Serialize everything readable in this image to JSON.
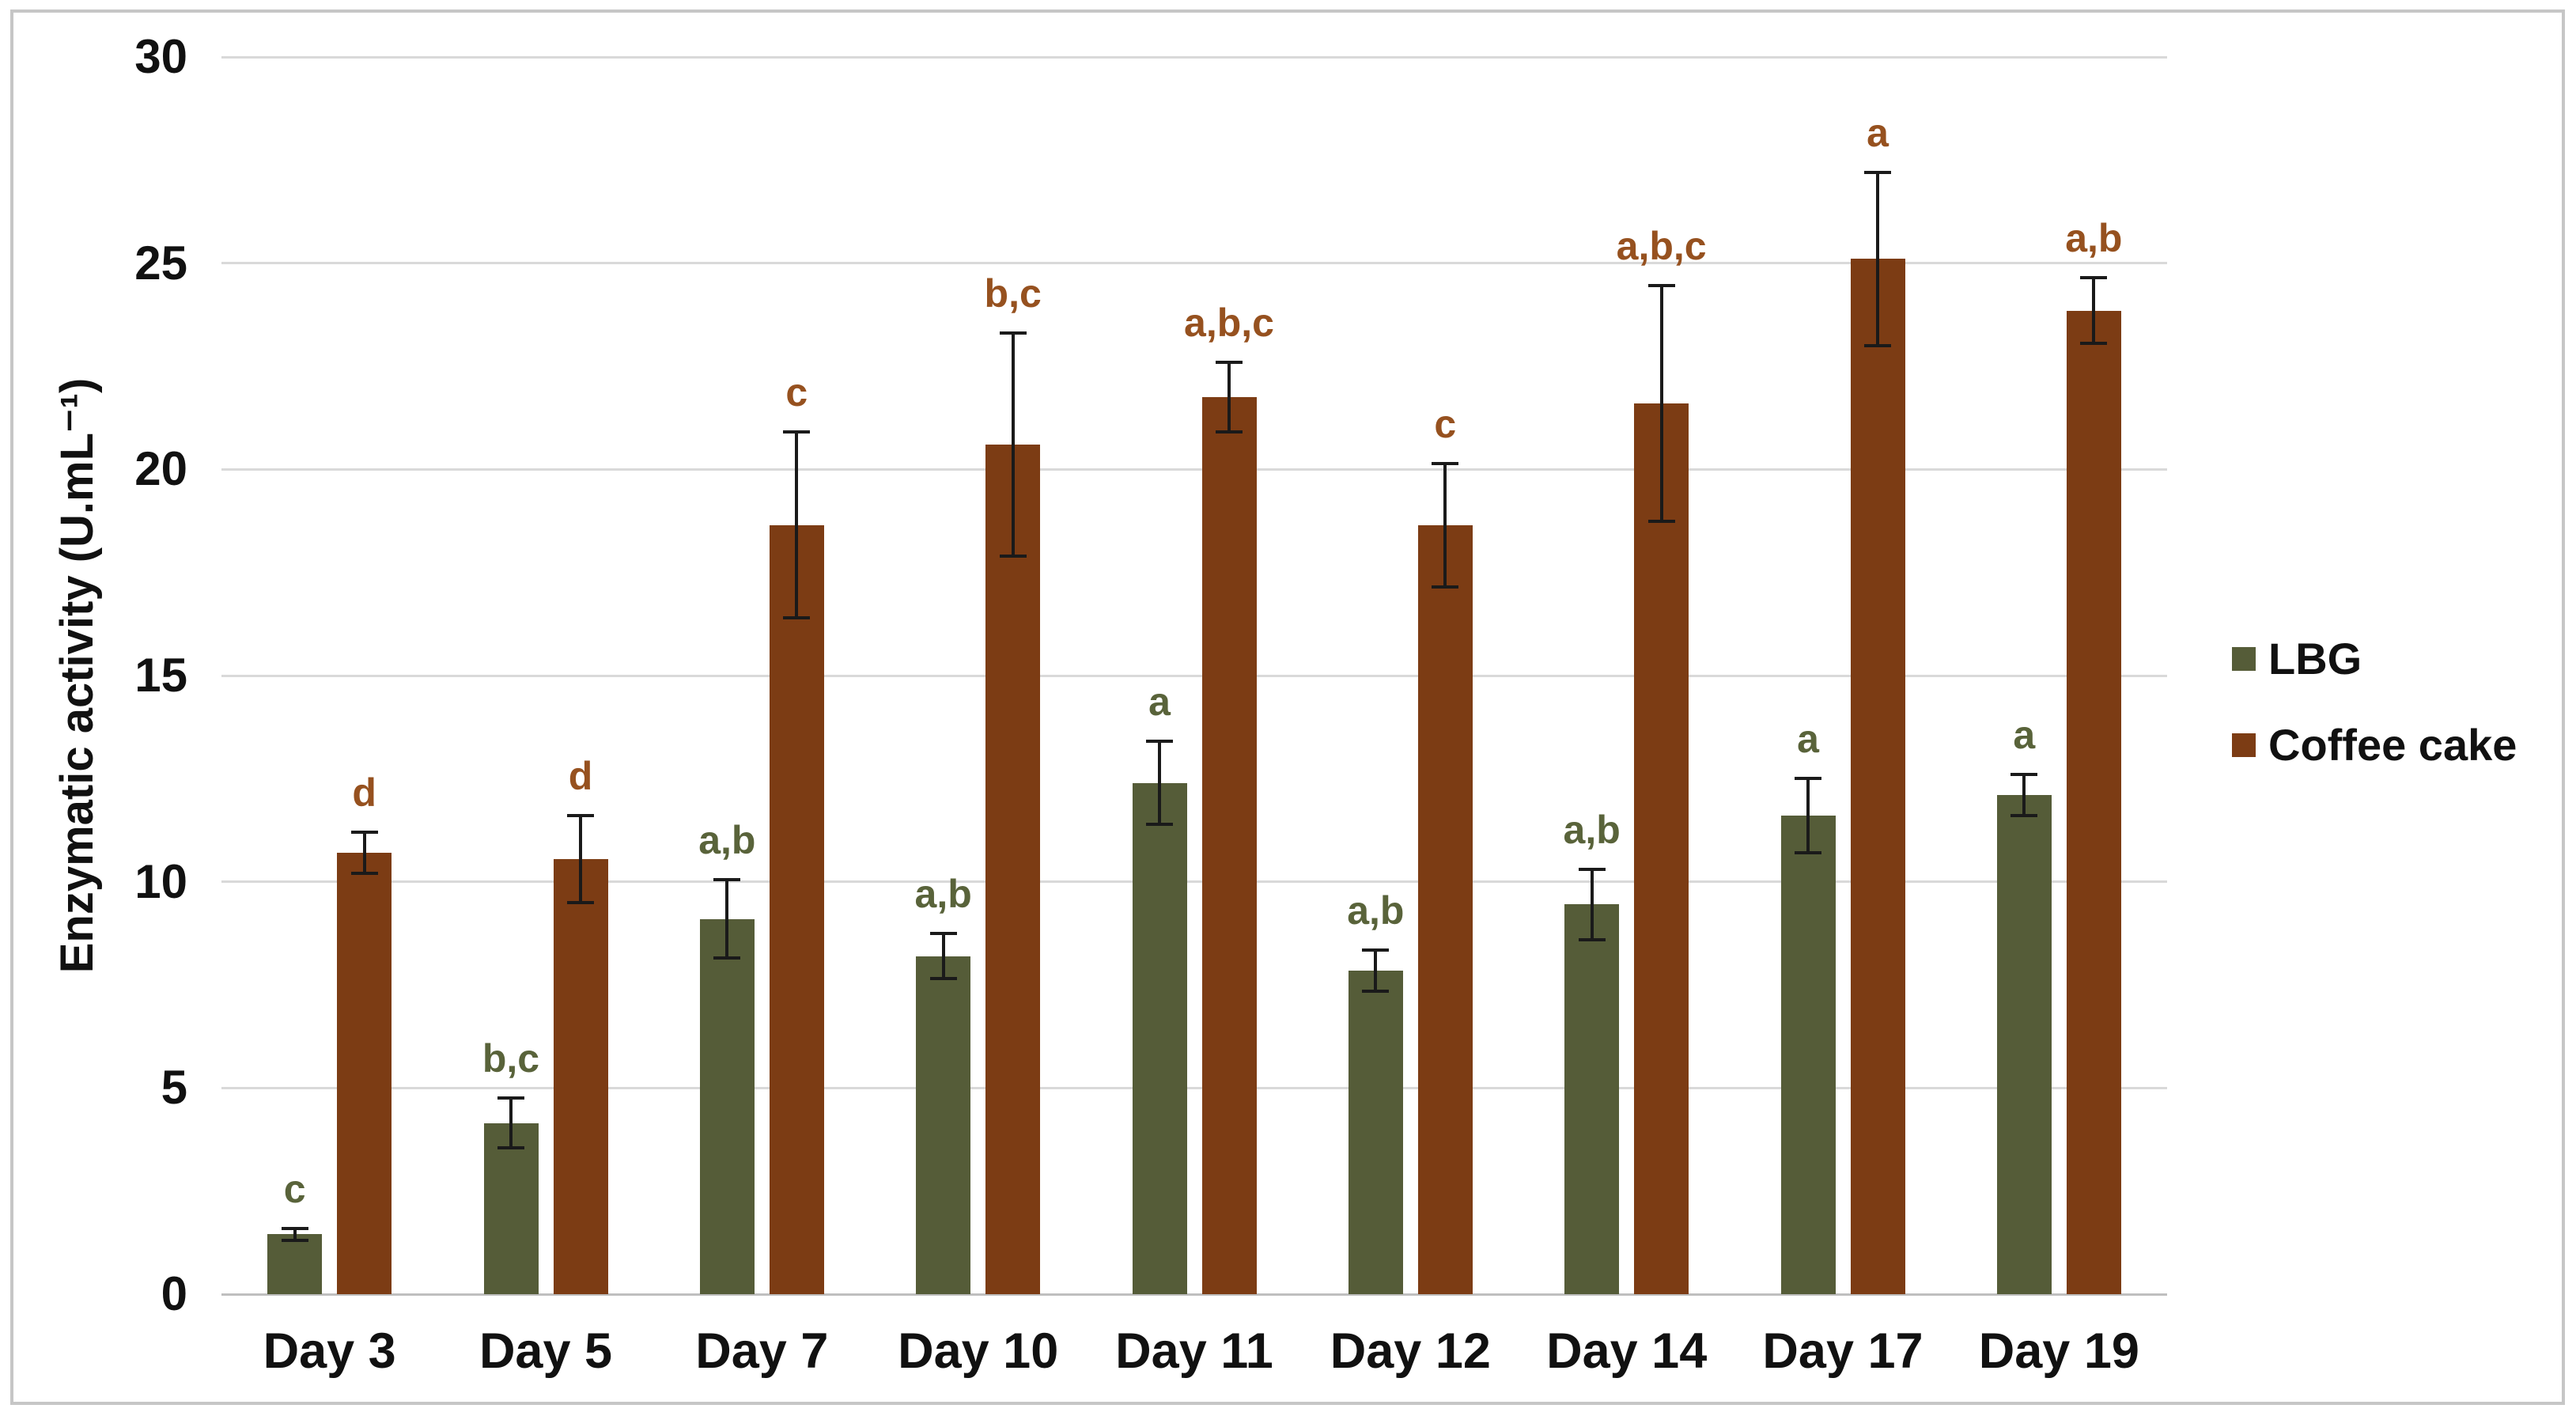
{
  "figure": {
    "background": "#ffffff",
    "border_color": "#c6c6c6"
  },
  "y_axis": {
    "title": "Enzymatic activity (U.mL⁻¹)",
    "ticks": [
      "0",
      "5",
      "10",
      "15",
      "20",
      "25",
      "30"
    ],
    "min": 0,
    "max": 30
  },
  "legend": {
    "items": [
      {
        "label": "LBG",
        "color": "#555C38"
      },
      {
        "label": "Coffee cake",
        "color": "#7C3C14"
      }
    ]
  },
  "chart_data": {
    "type": "bar",
    "title": "",
    "xlabel": "",
    "ylabel": "Enzymatic activity (U.mL⁻¹)",
    "ylim": [
      0,
      30
    ],
    "grid": true,
    "legend_position": "right",
    "categories": [
      "Day 3",
      "Day 5",
      "Day 7",
      "Day 10",
      "Day 11",
      "Day 12",
      "Day 14",
      "Day 17",
      "Day 19"
    ],
    "series": [
      {
        "name": "LBG",
        "color": "#555C38",
        "label_color": "#59633A",
        "values": [
          1.45,
          4.15,
          9.1,
          8.2,
          12.4,
          7.85,
          9.45,
          11.6,
          12.1
        ],
        "errors": [
          0.15,
          0.6,
          0.95,
          0.55,
          1.0,
          0.5,
          0.85,
          0.9,
          0.5
        ],
        "sig_labels": [
          "c",
          "b,c",
          "a,b",
          "a,b",
          "a",
          "a,b",
          "a,b",
          "a",
          "a"
        ]
      },
      {
        "name": "Coffee cake",
        "color": "#7C3C14",
        "label_color": "#96511F",
        "values": [
          10.7,
          10.55,
          18.65,
          20.6,
          21.75,
          18.65,
          21.6,
          25.1,
          23.85
        ],
        "errors": [
          0.5,
          1.05,
          2.25,
          2.7,
          0.85,
          1.5,
          2.85,
          2.1,
          0.8
        ],
        "sig_labels": [
          "d",
          "d",
          "c",
          "b,c",
          "a,b,c",
          "c",
          "a,b,c",
          "a",
          "a,b"
        ]
      }
    ]
  }
}
